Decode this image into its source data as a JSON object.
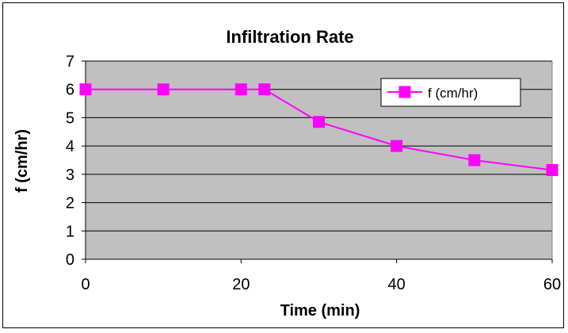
{
  "chart_data": {
    "type": "line",
    "title": "Infiltration Rate",
    "xlabel": "Time (min)",
    "ylabel": "f (cm/hr)",
    "xlim": [
      0,
      60
    ],
    "ylim": [
      0,
      7
    ],
    "x_ticks": [
      0,
      20,
      40,
      60
    ],
    "y_ticks": [
      0,
      1,
      2,
      3,
      4,
      5,
      6,
      7
    ],
    "grid": "horizontal",
    "legend_position": "top-right",
    "series": [
      {
        "name": "f (cm/hr)",
        "color": "#ff00ff",
        "marker": "square",
        "x": [
          0,
          10,
          20,
          23,
          30,
          40,
          50,
          60
        ],
        "y": [
          6,
          6,
          6,
          6,
          4.85,
          4,
          3.5,
          3.15
        ]
      }
    ]
  },
  "colors": {
    "plot_background": "#c0c0c0",
    "gridline": "#000000",
    "series": "#ff00ff"
  }
}
